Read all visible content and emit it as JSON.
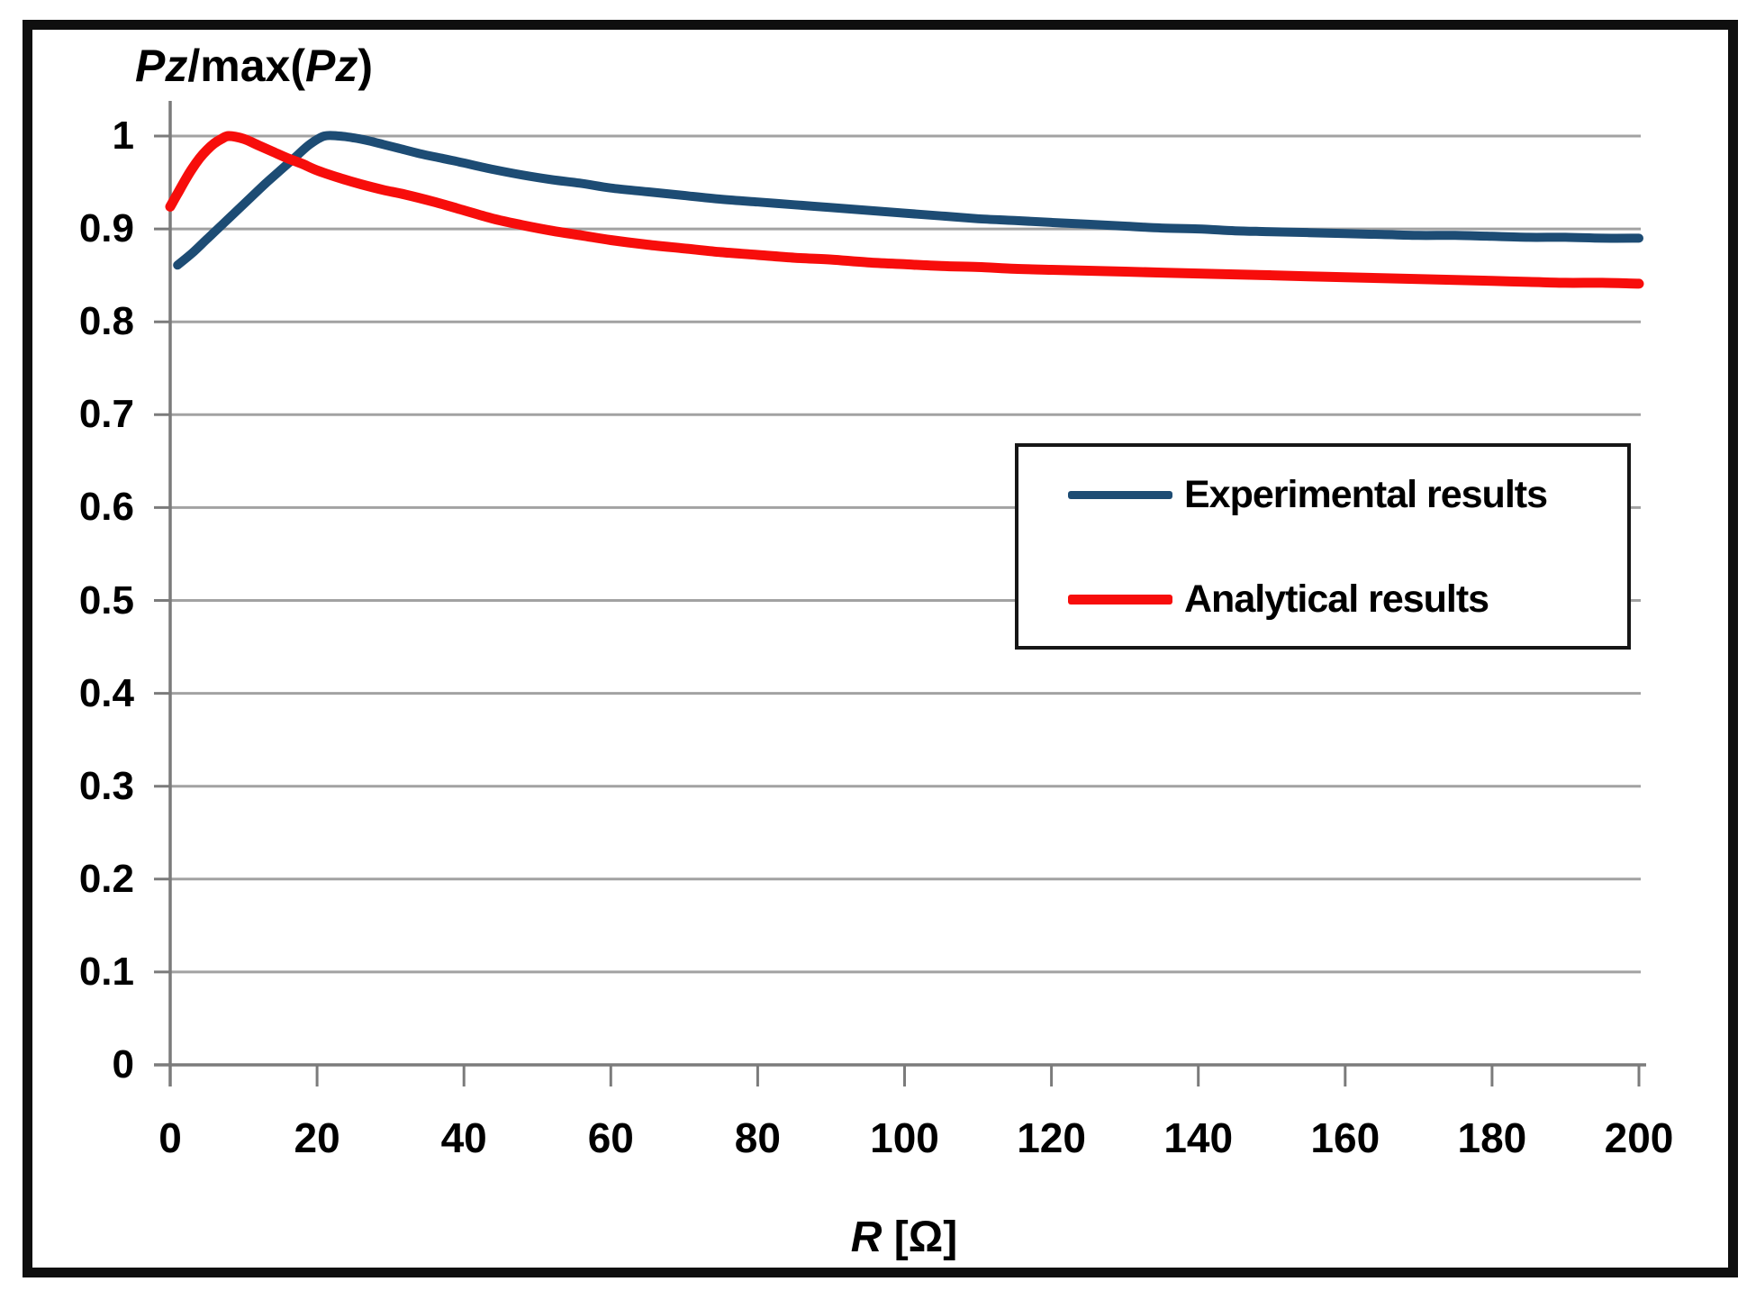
{
  "figure": {
    "background": "#ffffff",
    "frame_color": "#0f0f0f",
    "axis_color": "#7b7b7b",
    "gridline_color": "#a2a2a2",
    "text_color": "#000000"
  },
  "chart_data": {
    "type": "line",
    "title": "Pz/max(Pz)",
    "title_segments": [
      {
        "text": "Pz",
        "italic": true
      },
      {
        "text": "/max(",
        "italic": false
      },
      {
        "text": "Pz",
        "italic": true
      },
      {
        "text": ")",
        "italic": false
      }
    ],
    "xlabel": "R [Ω]",
    "xlabel_segments": [
      {
        "text": "R",
        "italic": true
      },
      {
        "text": " [Ω]",
        "italic": false
      }
    ],
    "ylabel": "Pz/max(Pz)",
    "xlim": [
      0,
      200
    ],
    "ylim": [
      0,
      1
    ],
    "x_ticks": [
      0,
      20,
      40,
      60,
      80,
      100,
      120,
      140,
      160,
      180,
      200
    ],
    "x_tick_labels": [
      "0",
      "20",
      "40",
      "60",
      "80",
      "100",
      "120",
      "140",
      "160",
      "180",
      "200"
    ],
    "y_ticks": [
      0,
      0.1,
      0.2,
      0.3,
      0.4,
      0.5,
      0.6,
      0.7,
      0.8,
      0.9,
      1
    ],
    "y_tick_labels": [
      "0",
      "0.1",
      "0.2",
      "0.3",
      "0.4",
      "0.5",
      "0.6",
      "0.7",
      "0.8",
      "0.9",
      "1"
    ],
    "grid": "horizontal",
    "legend": {
      "position": "middle-right",
      "entries": [
        {
          "name": "Experimental results",
          "color": "#1d4c74",
          "line_width": 9
        },
        {
          "name": "Analytical results",
          "color": "#f70d0b",
          "line_width": 11
        }
      ]
    },
    "series": [
      {
        "name": "Experimental results",
        "color": "#1d4c74",
        "stroke_width": 10,
        "points": [
          [
            1,
            0.861
          ],
          [
            3,
            0.874
          ],
          [
            5,
            0.889
          ],
          [
            7,
            0.904
          ],
          [
            9,
            0.919
          ],
          [
            11,
            0.934
          ],
          [
            13,
            0.949
          ],
          [
            15,
            0.963
          ],
          [
            17,
            0.977
          ],
          [
            19,
            0.991
          ],
          [
            21,
            1.0
          ],
          [
            23,
            1.0
          ],
          [
            25,
            0.998
          ],
          [
            27,
            0.995
          ],
          [
            29,
            0.991
          ],
          [
            31,
            0.987
          ],
          [
            34,
            0.981
          ],
          [
            37,
            0.976
          ],
          [
            40,
            0.971
          ],
          [
            44,
            0.964
          ],
          [
            48,
            0.958
          ],
          [
            52,
            0.953
          ],
          [
            56,
            0.949
          ],
          [
            60,
            0.944
          ],
          [
            65,
            0.94
          ],
          [
            70,
            0.936
          ],
          [
            75,
            0.932
          ],
          [
            80,
            0.929
          ],
          [
            85,
            0.926
          ],
          [
            90,
            0.923
          ],
          [
            95,
            0.92
          ],
          [
            100,
            0.917
          ],
          [
            105,
            0.914
          ],
          [
            110,
            0.911
          ],
          [
            115,
            0.909
          ],
          [
            120,
            0.907
          ],
          [
            125,
            0.905
          ],
          [
            130,
            0.903
          ],
          [
            135,
            0.901
          ],
          [
            140,
            0.9
          ],
          [
            145,
            0.898
          ],
          [
            150,
            0.897
          ],
          [
            155,
            0.896
          ],
          [
            160,
            0.895
          ],
          [
            165,
            0.894
          ],
          [
            170,
            0.893
          ],
          [
            175,
            0.893
          ],
          [
            180,
            0.892
          ],
          [
            185,
            0.891
          ],
          [
            190,
            0.891
          ],
          [
            195,
            0.89
          ],
          [
            200,
            0.89
          ]
        ]
      },
      {
        "name": "Analytical results",
        "color": "#f70d0b",
        "stroke_width": 11,
        "points": [
          [
            0,
            0.924
          ],
          [
            1,
            0.938
          ],
          [
            2,
            0.952
          ],
          [
            3,
            0.965
          ],
          [
            4,
            0.976
          ],
          [
            5,
            0.985
          ],
          [
            6,
            0.992
          ],
          [
            7,
            0.997
          ],
          [
            8,
            1.0
          ],
          [
            10,
            0.997
          ],
          [
            12,
            0.99
          ],
          [
            14,
            0.983
          ],
          [
            16,
            0.976
          ],
          [
            18,
            0.97
          ],
          [
            20,
            0.963
          ],
          [
            23,
            0.955
          ],
          [
            26,
            0.948
          ],
          [
            29,
            0.942
          ],
          [
            32,
            0.937
          ],
          [
            36,
            0.929
          ],
          [
            40,
            0.92
          ],
          [
            44,
            0.911
          ],
          [
            48,
            0.904
          ],
          [
            52,
            0.898
          ],
          [
            56,
            0.893
          ],
          [
            60,
            0.888
          ],
          [
            65,
            0.883
          ],
          [
            70,
            0.879
          ],
          [
            75,
            0.875
          ],
          [
            80,
            0.872
          ],
          [
            85,
            0.869
          ],
          [
            90,
            0.867
          ],
          [
            95,
            0.864
          ],
          [
            100,
            0.862
          ],
          [
            105,
            0.86
          ],
          [
            110,
            0.859
          ],
          [
            115,
            0.857
          ],
          [
            120,
            0.856
          ],
          [
            125,
            0.855
          ],
          [
            130,
            0.854
          ],
          [
            135,
            0.853
          ],
          [
            140,
            0.852
          ],
          [
            145,
            0.851
          ],
          [
            150,
            0.85
          ],
          [
            155,
            0.849
          ],
          [
            160,
            0.848
          ],
          [
            165,
            0.847
          ],
          [
            170,
            0.846
          ],
          [
            175,
            0.845
          ],
          [
            180,
            0.844
          ],
          [
            185,
            0.843
          ],
          [
            190,
            0.842
          ],
          [
            195,
            0.842
          ],
          [
            200,
            0.841
          ]
        ]
      }
    ]
  }
}
